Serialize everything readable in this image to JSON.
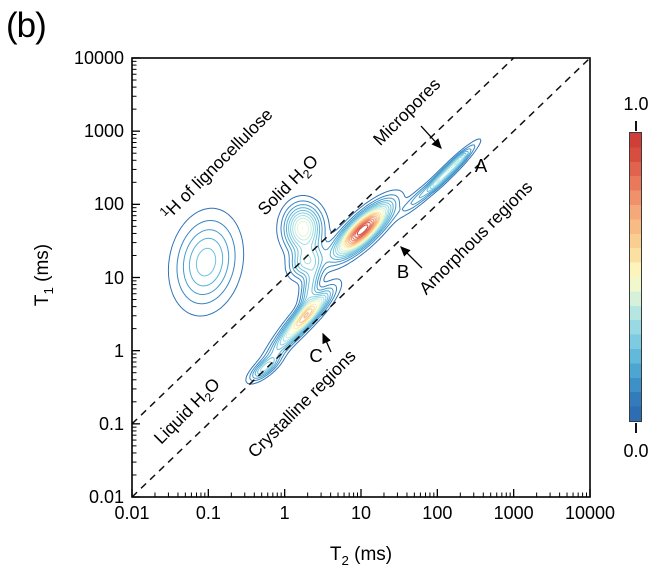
{
  "panel_label": "(b)",
  "axes": {
    "x": {
      "title_pre": "T",
      "title_sub": "2",
      "title_post": " (ms)",
      "scale": "log",
      "min": 0.01,
      "max": 10000,
      "tick_labels": [
        "0.01",
        "0.1",
        "1",
        "10",
        "100",
        "1000",
        "10000"
      ]
    },
    "y": {
      "title_pre": "T",
      "title_sub": "1",
      "title_post": " (ms)",
      "scale": "log",
      "min": 0.01,
      "max": 10000,
      "tick_labels": [
        "0.01",
        "0.1",
        "1",
        "10",
        "100",
        "1000",
        "10000"
      ]
    }
  },
  "colorbar": {
    "max_label": "1.0",
    "min_label": "0.0",
    "stops": [
      [
        0.0,
        "#2a67b0"
      ],
      [
        0.07,
        "#3379bb"
      ],
      [
        0.13,
        "#3f93c8"
      ],
      [
        0.2,
        "#55b0d8"
      ],
      [
        0.28,
        "#7fcde0"
      ],
      [
        0.35,
        "#a6e0e4"
      ],
      [
        0.4,
        "#c6ecdf"
      ],
      [
        0.45,
        "#e4f5d2"
      ],
      [
        0.5,
        "#fdfdc6"
      ],
      [
        0.58,
        "#fbdf9f"
      ],
      [
        0.65,
        "#f9c489"
      ],
      [
        0.73,
        "#f5a679"
      ],
      [
        0.8,
        "#ee8563"
      ],
      [
        0.88,
        "#e0604b"
      ],
      [
        0.95,
        "#d2423a"
      ],
      [
        1.0,
        "#cc3a33"
      ]
    ]
  },
  "annotations": {
    "lignocellulose": {
      "sup": "1",
      "text": "H of lignocellulose"
    },
    "solid_water": {
      "pre": "Solid H",
      "sub": "2",
      "post": "O"
    },
    "micropores": {
      "text": "Micropores"
    },
    "region_a": {
      "text": "A"
    },
    "amorphous": {
      "text": "Amorphous regions"
    },
    "region_b": {
      "text": "B"
    },
    "crystalline": {
      "text": "Crystalline regions"
    },
    "region_c": {
      "text": "C"
    },
    "liquid_water": {
      "pre": "Liquid H",
      "sub": "2",
      "post": "O"
    }
  },
  "chart_data": {
    "type": "contour",
    "title": "",
    "xlabel": "T2 (ms)",
    "ylabel": "T1 (ms)",
    "x_range_ms": [
      0.01,
      10000
    ],
    "y_range_ms": [
      0.01,
      10000
    ],
    "x_scale": "log",
    "y_scale": "log",
    "intensity_range": [
      0.0,
      1.0
    ],
    "contour_levels": {
      "start": 0.05,
      "step": 0.05,
      "end": 0.95
    },
    "grid": false,
    "reference_lines": [
      {
        "name": "T1 = T2",
        "style": "dashed",
        "color": "#111111"
      },
      {
        "name": "T1 = 10 T2",
        "style": "dashed",
        "color": "#111111"
      }
    ],
    "features": [
      {
        "name": "1H of lignocellulose",
        "T2_ms": 0.09,
        "T1_ms": 16,
        "peak_intensity": 0.28
      },
      {
        "name": "Solid H2O",
        "T2_ms": 1.7,
        "T1_ms": 47,
        "peak_intensity": 0.5
      },
      {
        "name": "B  Amorphous regions",
        "T2_ms": 10.5,
        "T1_ms": 45,
        "peak_intensity": 1.0
      },
      {
        "name": "A  Micropores",
        "T2_ms": 138,
        "T1_ms": 282,
        "peak_intensity": 0.4
      },
      {
        "name": "C  Crystalline regions",
        "T2_ms": 2.0,
        "T1_ms": 3.2,
        "peak_intensity": 0.62
      },
      {
        "name": "Liquid H2O",
        "T2_ms": 0.55,
        "T1_ms": 0.58,
        "peak_intensity": 0.3
      }
    ],
    "model_gaussians": [
      {
        "a": 0.28,
        "u": -1.03,
        "v": 1.21,
        "sM": 0.4,
        "sm": 0.26,
        "rot": 80
      },
      {
        "a": 0.5,
        "u": 0.24,
        "v": 1.67,
        "sM": 0.21,
        "sm": 0.16,
        "rot": 90
      },
      {
        "a": 1.0,
        "u": 1.02,
        "v": 1.65,
        "sM": 0.3,
        "sm": 0.1,
        "rot": 45
      },
      {
        "a": 0.4,
        "u": 2.14,
        "v": 2.45,
        "sM": 0.3,
        "sm": 0.045,
        "rot": 46
      },
      {
        "a": 0.1,
        "u": 2.3,
        "v": 2.62,
        "sM": 0.08,
        "sm": 0.03,
        "rot": 46
      },
      {
        "a": 0.08,
        "u": 1.98,
        "v": 2.28,
        "sM": 0.07,
        "sm": 0.03,
        "rot": 46
      },
      {
        "a": 0.62,
        "u": 0.3,
        "v": 0.5,
        "sM": 0.28,
        "sm": 0.075,
        "rot": 47
      },
      {
        "a": 0.3,
        "u": -0.26,
        "v": -0.24,
        "sM": 0.16,
        "sm": 0.06,
        "rot": 40
      },
      {
        "a": 0.3,
        "u": 0.28,
        "v": 1.21,
        "sM": 0.16,
        "sm": 0.12,
        "rot": 50
      },
      {
        "a": 0.25,
        "u": 0.33,
        "v": 0.85,
        "sM": 0.22,
        "sm": 0.07,
        "rot": 75
      },
      {
        "a": 0.22,
        "u": 0.0,
        "v": 0.13,
        "sM": 0.26,
        "sm": 0.07,
        "rot": 48
      },
      {
        "a": 0.13,
        "u": 1.72,
        "v": 2.07,
        "sM": 0.2,
        "sm": 0.05,
        "rot": 46
      }
    ]
  }
}
